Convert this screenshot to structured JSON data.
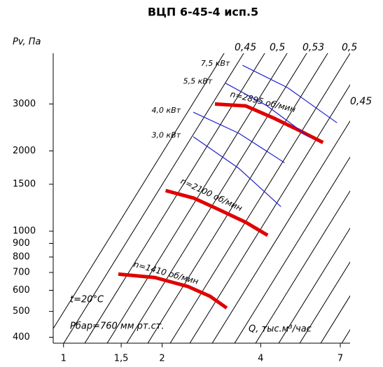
{
  "chart_data": {
    "type": "line",
    "title": "ВЦП 6-45-4 исп.5",
    "y_label": "Pv, Па",
    "x_label": "Q, тыс.м³/час",
    "x_log": true,
    "y_log": true,
    "xlim": [
      0.93,
      7.5
    ],
    "ylim": [
      380,
      4650
    ],
    "xticks": [
      1,
      {
        "value": 1.5,
        "label": "1,5"
      },
      2,
      4,
      7
    ],
    "yticks": [
      400,
      500,
      600,
      700,
      800,
      900,
      1000,
      1500,
      2000,
      3000
    ],
    "annotations": [
      "t=20°C",
      "Pбар=760 мм рт.ст.",
      "0,45",
      "0,5",
      "0,53",
      "0,5",
      "0,45"
    ],
    "series": [
      {
        "name": "n=2895 об/мин",
        "color": "#e00000",
        "x": [
          2.9,
          3.6,
          4.4,
          5.2,
          6.2
        ],
        "values": [
          3000,
          2950,
          2650,
          2400,
          2150
        ]
      },
      {
        "name": "n=2100 об/мин",
        "color": "#e00000",
        "x": [
          2.05,
          2.5,
          3.0,
          3.6,
          4.2
        ],
        "values": [
          1420,
          1330,
          1200,
          1080,
          965
        ]
      },
      {
        "name": "n=1410 об/мин",
        "color": "#e00000",
        "x": [
          1.47,
          1.9,
          2.4,
          2.8,
          3.15
        ],
        "values": [
          690,
          670,
          620,
          570,
          515
        ]
      },
      {
        "name": "7,5 кВт",
        "color": "#2020d0",
        "x": [
          3.52,
          4.84,
          6.84
        ],
        "values": [
          4190,
          3450,
          2550
        ]
      },
      {
        "name": "5,5 кВт",
        "color": "#2020d0",
        "x": [
          3.11,
          4.17,
          5.61
        ],
        "values": [
          3600,
          2960,
          2260
        ]
      },
      {
        "name": "4,0 кВт",
        "color": "#2020d0",
        "x": [
          2.49,
          3.43,
          4.73
        ],
        "values": [
          2795,
          2330,
          1806
        ]
      },
      {
        "name": "3,0 кВт",
        "color": "#2020d0",
        "x": [
          2.49,
          3.43,
          4.61
        ],
        "values": [
          2260,
          1720,
          1236
        ]
      }
    ]
  }
}
